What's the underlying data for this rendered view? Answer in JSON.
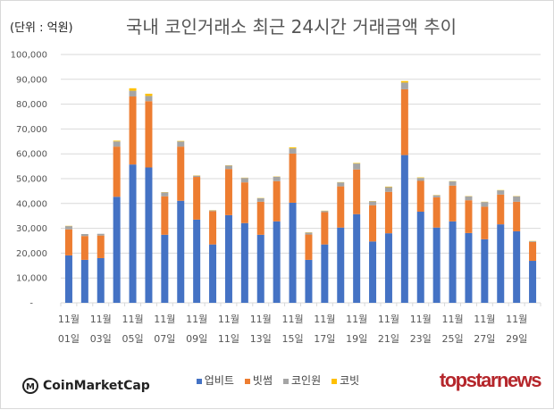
{
  "unit_label": "(단위 : 억원)",
  "source_logo": "CoinMarketCap",
  "publisher_logo": "topstarnews",
  "chart_data": {
    "type": "bar",
    "stacked": true,
    "title": "국내 코인거래소 최근 24시간 거래금액 추이",
    "xlabel": "",
    "ylabel": "(단위 : 억원)",
    "ylim": [
      0,
      100000
    ],
    "yticks": [
      {
        "value": 100000,
        "label": "100,000"
      },
      {
        "value": 90000,
        "label": "90,000"
      },
      {
        "value": 80000,
        "label": "80,000"
      },
      {
        "value": 70000,
        "label": "70,000"
      },
      {
        "value": 60000,
        "label": "60,000"
      },
      {
        "value": 50000,
        "label": "50,000"
      },
      {
        "value": 40000,
        "label": "40,000"
      },
      {
        "value": 30000,
        "label": "30,000"
      },
      {
        "value": 20000,
        "label": "20,000"
      },
      {
        "value": 10000,
        "label": "10,000"
      },
      {
        "value": 0,
        "label": "-"
      }
    ],
    "grid": true,
    "legend_position": "bottom",
    "categories": [
      "11월 01일",
      "11월 02일",
      "11월 03일",
      "11월 04일",
      "11월 05일",
      "11월 06일",
      "11월 07일",
      "11월 08일",
      "11월 09일",
      "11월 10일",
      "11월 11일",
      "11월 12일",
      "11월 13일",
      "11월 14일",
      "11월 15일",
      "11월 16일",
      "11월 17일",
      "11월 18일",
      "11월 19일",
      "11월 20일",
      "11월 21일",
      "11월 22일",
      "11월 23일",
      "11월 24일",
      "11월 25일",
      "11월 26일",
      "11월 27일",
      "11월 28일",
      "11월 29일",
      "11월 30일"
    ],
    "xtick_labels": [
      {
        "index": 0,
        "month": "11월",
        "day": "01일"
      },
      {
        "index": 2,
        "month": "11월",
        "day": "03일"
      },
      {
        "index": 4,
        "month": "11월",
        "day": "05일"
      },
      {
        "index": 6,
        "month": "11월",
        "day": "07일"
      },
      {
        "index": 8,
        "month": "11월",
        "day": "09일"
      },
      {
        "index": 10,
        "month": "11월",
        "day": "11일"
      },
      {
        "index": 12,
        "month": "11월",
        "day": "13일"
      },
      {
        "index": 14,
        "month": "11월",
        "day": "15일"
      },
      {
        "index": 16,
        "month": "11월",
        "day": "17일"
      },
      {
        "index": 18,
        "month": "11월",
        "day": "19일"
      },
      {
        "index": 20,
        "month": "11월",
        "day": "21일"
      },
      {
        "index": 22,
        "month": "11월",
        "day": "23일"
      },
      {
        "index": 24,
        "month": "11월",
        "day": "25일"
      },
      {
        "index": 26,
        "month": "11월",
        "day": "27일"
      },
      {
        "index": 28,
        "month": "11월",
        "day": "29일"
      }
    ],
    "series": [
      {
        "name": "업비트",
        "color": "#4472c4",
        "values": [
          19100,
          17300,
          18000,
          42700,
          55700,
          54500,
          27400,
          41100,
          33500,
          23500,
          35300,
          32100,
          27400,
          32800,
          40300,
          17300,
          23500,
          30300,
          35700,
          24700,
          28000,
          59500,
          36700,
          30300,
          32800,
          28100,
          25600,
          31600,
          28800,
          16900
        ]
      },
      {
        "name": "빗썸",
        "color": "#ed7d31",
        "values": [
          10500,
          9600,
          9100,
          20200,
          27400,
          26700,
          15500,
          21800,
          17200,
          13400,
          18600,
          16400,
          13300,
          16200,
          19800,
          10200,
          13000,
          16600,
          18000,
          14600,
          16700,
          26500,
          12400,
          12200,
          14400,
          13200,
          13100,
          12000,
          11900,
          7600
        ]
      },
      {
        "name": "코인원",
        "color": "#a5a5a5",
        "values": [
          1300,
          800,
          700,
          2100,
          2300,
          2100,
          1600,
          2100,
          500,
          300,
          1400,
          1800,
          1400,
          1800,
          2100,
          800,
          500,
          1600,
          2400,
          1600,
          1900,
          2700,
          1200,
          800,
          1700,
          1600,
          1900,
          1700,
          2200,
          300
        ]
      },
      {
        "name": "코빗",
        "color": "#ffc000",
        "values": [
          100,
          0,
          0,
          300,
          1000,
          900,
          100,
          200,
          100,
          100,
          100,
          100,
          100,
          100,
          400,
          100,
          100,
          100,
          200,
          100,
          200,
          600,
          200,
          100,
          100,
          100,
          100,
          100,
          100,
          100
        ]
      }
    ]
  }
}
